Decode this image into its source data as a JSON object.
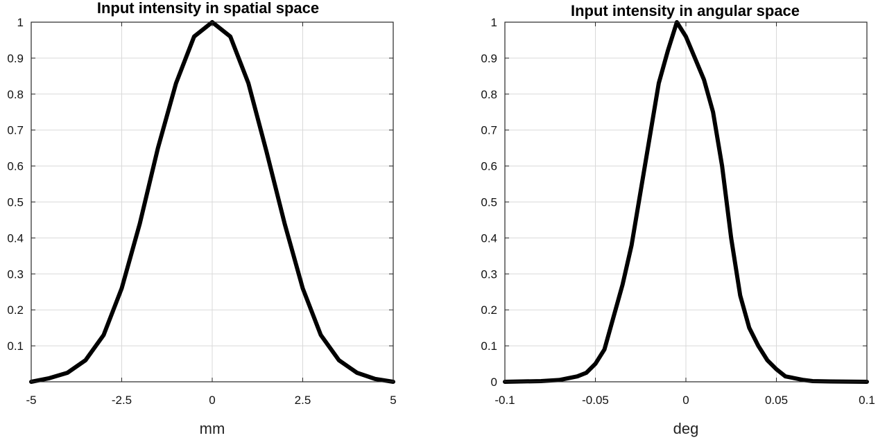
{
  "chart_data": [
    {
      "type": "line",
      "title": "Input intensity in spatial  space",
      "xlabel": "mm",
      "ylabel": "",
      "xlim": [
        -5,
        5
      ],
      "ylim": [
        0,
        1
      ],
      "grid": true,
      "x_ticks": [
        -5,
        -2.5,
        0,
        2.5,
        5
      ],
      "x_tick_labels": [
        "-5",
        "-2.5",
        "0",
        "2.5",
        "5"
      ],
      "y_ticks": [
        0.1,
        0.2,
        0.3,
        0.4,
        0.5,
        0.6,
        0.7,
        0.8,
        0.9,
        1
      ],
      "y_tick_labels": [
        "0.1",
        "0.2",
        "0.3",
        "0.4",
        "0.5",
        "0.6",
        "0.7",
        "0.8",
        "0.9",
        "1"
      ],
      "series": [
        {
          "color": "#000000",
          "x": [
            -5,
            -4.5,
            -4,
            -3.5,
            -3,
            -2.5,
            -2,
            -1.5,
            -1,
            -0.5,
            0,
            0.5,
            1,
            1.5,
            2,
            2.5,
            3,
            3.5,
            4,
            4.5,
            5
          ],
          "y": [
            0.0,
            0.01,
            0.025,
            0.06,
            0.13,
            0.26,
            0.44,
            0.65,
            0.83,
            0.96,
            1.0,
            0.96,
            0.83,
            0.64,
            0.44,
            0.26,
            0.13,
            0.06,
            0.025,
            0.008,
            0.0
          ]
        }
      ]
    },
    {
      "type": "line",
      "title": "Input intensity in angular  space",
      "xlabel": "deg",
      "ylabel": "",
      "xlim": [
        -0.1,
        0.1
      ],
      "ylim": [
        0,
        1
      ],
      "grid": true,
      "x_ticks": [
        -0.1,
        -0.05,
        0,
        0.05,
        0.1
      ],
      "x_tick_labels": [
        "-0.1",
        "-0.05",
        "0",
        "0.05",
        "0.1"
      ],
      "y_ticks": [
        0,
        0.1,
        0.2,
        0.3,
        0.4,
        0.5,
        0.6,
        0.7,
        0.8,
        0.9,
        1
      ],
      "y_tick_labels": [
        "0",
        "0.1",
        "0.2",
        "0.3",
        "0.4",
        "0.5",
        "0.6",
        "0.7",
        "0.8",
        "0.9",
        "1"
      ],
      "series": [
        {
          "color": "#000000",
          "x": [
            -0.1,
            -0.08,
            -0.07,
            -0.065,
            -0.06,
            -0.055,
            -0.05,
            -0.045,
            -0.04,
            -0.035,
            -0.03,
            -0.025,
            -0.02,
            -0.015,
            -0.01,
            -0.005,
            0,
            0.005,
            0.01,
            0.015,
            0.02,
            0.025,
            0.03,
            0.035,
            0.04,
            0.045,
            0.05,
            0.055,
            0.06,
            0.065,
            0.07,
            0.08,
            0.1
          ],
          "y": [
            0,
            0.002,
            0.005,
            0.01,
            0.015,
            0.025,
            0.05,
            0.09,
            0.18,
            0.27,
            0.38,
            0.53,
            0.68,
            0.83,
            0.92,
            1.0,
            0.96,
            0.9,
            0.84,
            0.75,
            0.6,
            0.4,
            0.24,
            0.15,
            0.1,
            0.06,
            0.035,
            0.015,
            0.01,
            0.005,
            0.002,
            0.001,
            0
          ]
        }
      ]
    }
  ]
}
